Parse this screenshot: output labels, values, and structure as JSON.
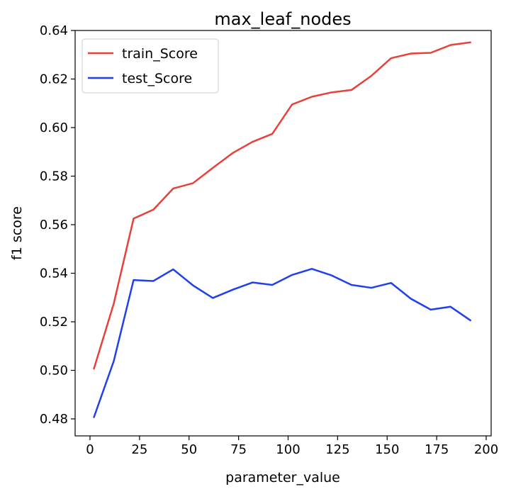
{
  "chart_data": {
    "type": "line",
    "title": "max_leaf_nodes",
    "xlabel": "parameter_value",
    "ylabel": "f1 score",
    "xlim": [
      -7.5,
      202.5
    ],
    "ylim": [
      0.473,
      0.64
    ],
    "xticks": [
      0,
      25,
      50,
      75,
      100,
      125,
      150,
      175,
      200
    ],
    "yticks": [
      0.48,
      0.5,
      0.52,
      0.54,
      0.56,
      0.58,
      0.6,
      0.62,
      0.64
    ],
    "ytick_labels": [
      "0.48",
      "0.50",
      "0.52",
      "0.54",
      "0.56",
      "0.58",
      "0.60",
      "0.62",
      "0.64"
    ],
    "grid": false,
    "legend_position": "top-left",
    "x": [
      2,
      12,
      22,
      32,
      42,
      52,
      62,
      72,
      82,
      92,
      102,
      112,
      122,
      132,
      142,
      152,
      162,
      172,
      182,
      192
    ],
    "series": [
      {
        "name": "train_Score",
        "color": "#e8413a",
        "values": [
          0.5007,
          0.5275,
          0.5625,
          0.5662,
          0.5749,
          0.5771,
          0.5834,
          0.5895,
          0.5941,
          0.5974,
          0.6095,
          0.6127,
          0.6145,
          0.6155,
          0.6213,
          0.6286,
          0.6305,
          0.6308,
          0.634,
          0.6351
        ]
      },
      {
        "name": "test_Score",
        "color": "#1f3ff0",
        "values": [
          0.4807,
          0.5038,
          0.5372,
          0.5368,
          0.5416,
          0.535,
          0.5298,
          0.5332,
          0.5362,
          0.5352,
          0.5393,
          0.5418,
          0.5391,
          0.5352,
          0.534,
          0.536,
          0.5295,
          0.525,
          0.5262,
          0.5206
        ]
      }
    ]
  }
}
